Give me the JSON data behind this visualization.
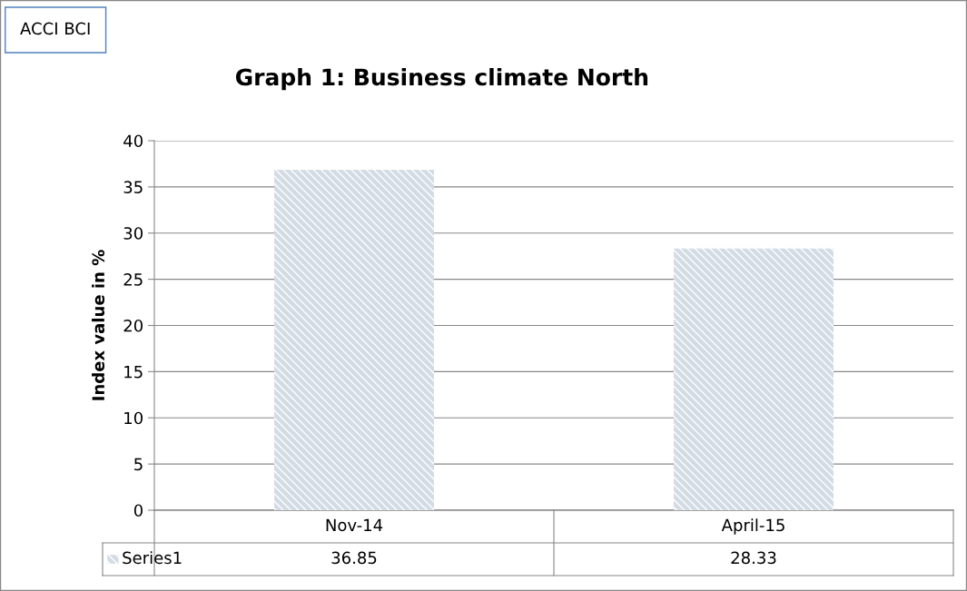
{
  "chart_data": {
    "type": "bar",
    "title": "Graph 1: Business climate North",
    "ylabel": "Index value in %",
    "annotations": [
      "ACCI BCI"
    ],
    "categories": [
      "Nov-14",
      "April-15"
    ],
    "series": [
      {
        "name": "Series1",
        "color": "#d3dbe4",
        "values": [
          36.85,
          28.33
        ]
      }
    ],
    "ylim": [
      0,
      40
    ],
    "yticks": [
      0,
      5,
      10,
      15,
      20,
      25,
      30,
      35,
      40
    ],
    "grid": "y",
    "data_labels": true
  }
}
